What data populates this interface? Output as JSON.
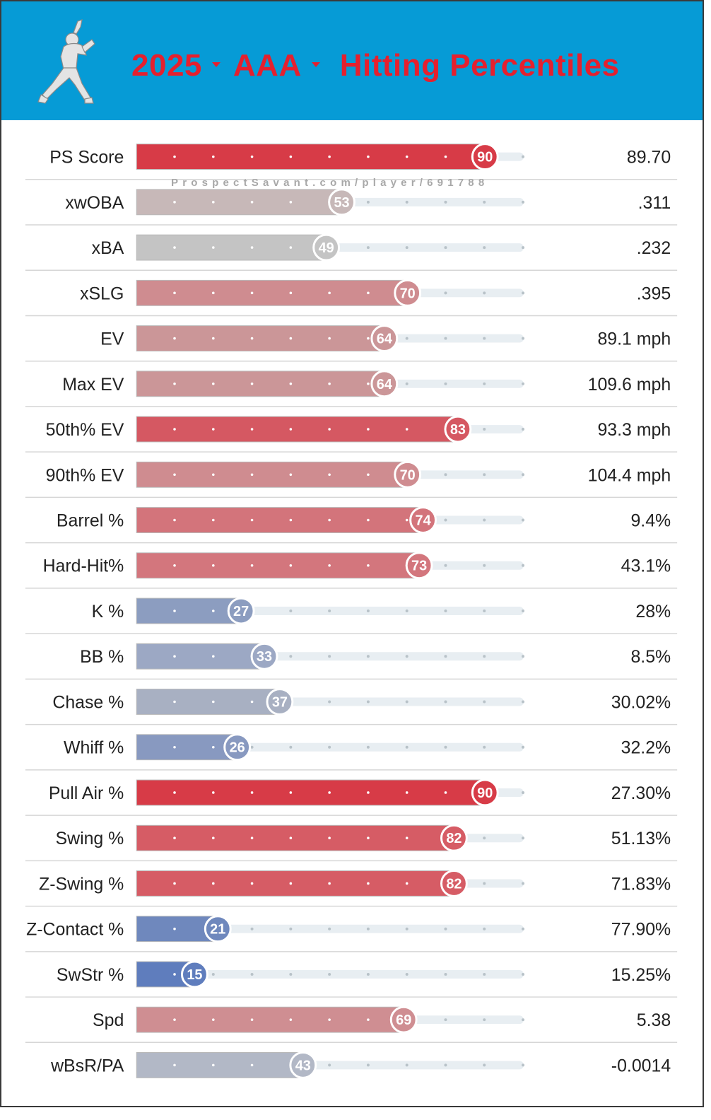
{
  "header": {
    "season": "2025",
    "level": "AAA",
    "title": "Hitting Percentiles",
    "logo_icon": "batter-silhouette-icon",
    "background": "#069bd6",
    "title_color": "#e5202e"
  },
  "watermark": "ProspectSavant.com/player/691788",
  "chart_data": {
    "type": "bar",
    "orientation": "horizontal",
    "xlim": [
      0,
      100
    ],
    "categories": [
      "PS Score",
      "xwOBA",
      "xBA",
      "xSLG",
      "EV",
      "Max EV",
      "50th% EV",
      "90th% EV",
      "Barrel %",
      "Hard-Hit%",
      "K %",
      "BB %",
      "Chase %",
      "Whiff %",
      "Pull Air %",
      "Swing %",
      "Z-Swing %",
      "Z-Contact %",
      "SwStr %",
      "Spd",
      "wBsR/PA"
    ],
    "percentiles": [
      90,
      53,
      49,
      70,
      64,
      64,
      83,
      70,
      74,
      73,
      27,
      33,
      37,
      26,
      90,
      82,
      82,
      21,
      15,
      69,
      43
    ],
    "values": [
      "89.70",
      ".311",
      ".232",
      ".395",
      "89.1 mph",
      "109.6 mph",
      "93.3 mph",
      "104.4 mph",
      "9.4%",
      "43.1%",
      "28%",
      "8.5%",
      "30.02%",
      "32.2%",
      "27.30%",
      "51.13%",
      "71.83%",
      "77.90%",
      "15.25%",
      "5.38",
      "-0.0014"
    ],
    "colors": [
      "#d73b47",
      "#c7b8b8",
      "#c4c4c4",
      "#cf8c90",
      "#cb9698",
      "#cb9698",
      "#d55862",
      "#cf8c90",
      "#d3747b",
      "#d3767d",
      "#8c9dc0",
      "#9ca8c4",
      "#a8b0c2",
      "#8899c0",
      "#d73b47",
      "#d65c65",
      "#d65c65",
      "#6f88bd",
      "#5f7dbd",
      "#cf8e92",
      "#b2b8c6"
    ],
    "track_color": "#e8eef2",
    "grid": false
  }
}
